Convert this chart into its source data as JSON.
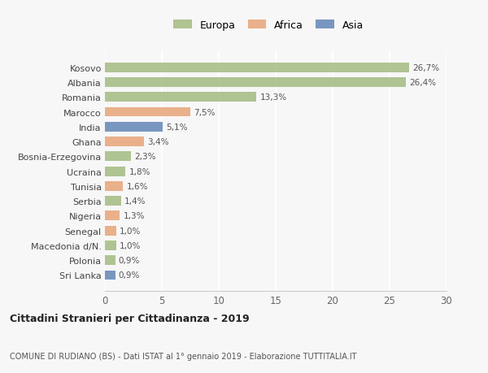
{
  "countries": [
    "Kosovo",
    "Albania",
    "Romania",
    "Marocco",
    "India",
    "Ghana",
    "Bosnia-Erzegovina",
    "Ucraina",
    "Tunisia",
    "Serbia",
    "Nigeria",
    "Senegal",
    "Macedonia d/N.",
    "Polonia",
    "Sri Lanka"
  ],
  "values": [
    26.7,
    26.4,
    13.3,
    7.5,
    5.1,
    3.4,
    2.3,
    1.8,
    1.6,
    1.4,
    1.3,
    1.0,
    1.0,
    0.9,
    0.9
  ],
  "labels": [
    "26,7%",
    "26,4%",
    "13,3%",
    "7,5%",
    "5,1%",
    "3,4%",
    "2,3%",
    "1,8%",
    "1,6%",
    "1,4%",
    "1,3%",
    "1,0%",
    "1,0%",
    "0,9%",
    "0,9%"
  ],
  "continents": [
    "Europa",
    "Europa",
    "Europa",
    "Africa",
    "Asia",
    "Africa",
    "Europa",
    "Europa",
    "Africa",
    "Europa",
    "Africa",
    "Africa",
    "Europa",
    "Europa",
    "Asia"
  ],
  "colors": {
    "Europa": "#a8bf87",
    "Africa": "#e8a97e",
    "Asia": "#6b8cba"
  },
  "bg_color": "#f7f7f7",
  "title": "Cittadini Stranieri per Cittadinanza - 2019",
  "subtitle": "COMUNE DI RUDIANO (BS) - Dati ISTAT al 1° gennaio 2019 - Elaborazione TUTTITALIA.IT",
  "xlim": [
    0,
    30
  ],
  "xticks": [
    0,
    5,
    10,
    15,
    20,
    25,
    30
  ]
}
